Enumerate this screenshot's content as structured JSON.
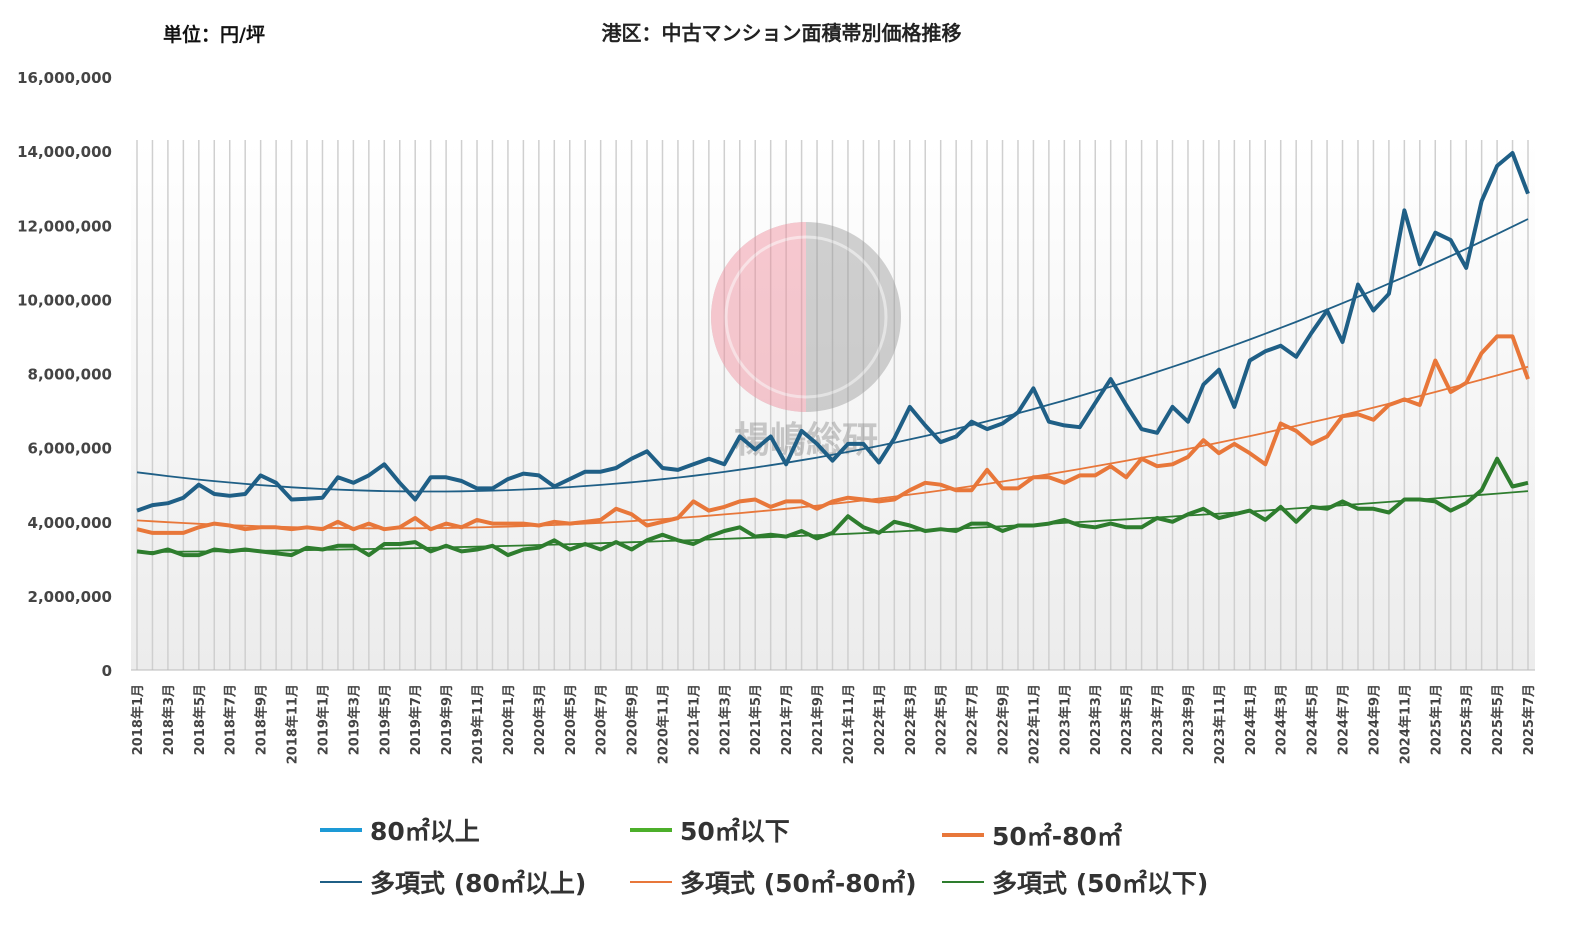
{
  "chart_data": {
    "type": "line",
    "title": "港区：中古マンション面積帯別価格推移",
    "unit_label": "単位：円/坪",
    "ylim": [
      0,
      16000000
    ],
    "y_ticks": [
      0,
      2000000,
      4000000,
      6000000,
      8000000,
      10000000,
      12000000,
      14000000,
      16000000
    ],
    "y_tick_labels": [
      "0",
      "2,000,000",
      "4,000,000",
      "6,000,000",
      "8,000,000",
      "10,000,000",
      "12,000,000",
      "14,000,000",
      "16,000,000"
    ],
    "x_start": "2018-01",
    "x_end": "2025-07",
    "x_tick_labels": [
      "2018年1月",
      "2018年3月",
      "2018年5月",
      "2018年7月",
      "2018年9月",
      "2018年11月",
      "2019年1月",
      "2019年3月",
      "2019年5月",
      "2019年7月",
      "2019年9月",
      "2019年11月",
      "2020年1月",
      "2020年3月",
      "2020年5月",
      "2020年7月",
      "2020年9月",
      "2020年11月",
      "2021年1月",
      "2021年3月",
      "2021年5月",
      "2021年7月",
      "2021年9月",
      "2021年11月",
      "2022年1月",
      "2022年3月",
      "2022年5月",
      "2022年7月",
      "2022年9月",
      "2022年11月",
      "2023年1月",
      "2023年3月",
      "2023年5月",
      "2023年7月",
      "2023年9月",
      "2023年11月",
      "2024年1月",
      "2024年3月",
      "2024年5月",
      "2024年7月",
      "2024年9月",
      "2024年11月",
      "2025年1月",
      "2025年3月",
      "2025年5月",
      "2025年7月"
    ],
    "grid": true,
    "legend_position": "bottom",
    "series": [
      {
        "name": "80㎡以上",
        "color": "#1f5f86",
        "trend_name": "多項式 (80㎡以上)",
        "trend_color": "#1f5f86",
        "values": [
          4300000,
          4450000,
          4500000,
          4650000,
          5000000,
          4750000,
          4700000,
          4750000,
          5250000,
          5050000,
          4600000,
          4620000,
          4650000,
          5200000,
          5050000,
          5250000,
          5550000,
          5050000,
          4600000,
          5200000,
          5200000,
          5100000,
          4900000,
          4900000,
          5150000,
          5300000,
          5250000,
          4950000,
          5150000,
          5350000,
          5350000,
          5450000,
          5700000,
          5900000,
          5450000,
          5400000,
          5550000,
          5700000,
          5550000,
          6300000,
          5950000,
          6300000,
          5550000,
          6450000,
          6100000,
          5650000,
          6100000,
          6100000,
          5600000,
          6250000,
          7100000,
          6600000,
          6150000,
          6300000,
          6700000,
          6500000,
          6650000,
          6950000,
          7600000,
          6700000,
          6600000,
          6550000,
          7200000,
          7850000,
          7150000,
          6500000,
          6400000,
          7100000,
          6700000,
          7700000,
          8100000,
          7100000,
          8350000,
          8600000,
          8750000,
          8450000,
          9100000,
          9700000,
          8850000,
          10400000,
          9700000,
          10150000,
          12400000,
          10950000,
          11800000,
          11600000,
          10850000,
          12650000,
          13600000,
          13950000,
          12850000
        ]
      },
      {
        "name": "50㎡以下",
        "color": "#2e7d2e",
        "trend_name": "多項式 (50㎡以下)",
        "trend_color": "#2e7d2e",
        "values": [
          3200000,
          3150000,
          3250000,
          3100000,
          3100000,
          3250000,
          3200000,
          3250000,
          3200000,
          3150000,
          3100000,
          3300000,
          3250000,
          3350000,
          3350000,
          3100000,
          3400000,
          3400000,
          3450000,
          3200000,
          3350000,
          3200000,
          3250000,
          3350000,
          3100000,
          3250000,
          3300000,
          3500000,
          3250000,
          3400000,
          3250000,
          3450000,
          3250000,
          3500000,
          3650000,
          3500000,
          3400000,
          3600000,
          3750000,
          3850000,
          3600000,
          3650000,
          3600000,
          3750000,
          3550000,
          3700000,
          4150000,
          3850000,
          3700000,
          4000000,
          3900000,
          3750000,
          3800000,
          3750000,
          3950000,
          3950000,
          3750000,
          3900000,
          3900000,
          3950000,
          4050000,
          3900000,
          3850000,
          3950000,
          3850000,
          3850000,
          4100000,
          4000000,
          4200000,
          4350000,
          4100000,
          4200000,
          4300000,
          4050000,
          4400000,
          4000000,
          4400000,
          4350000,
          4550000,
          4350000,
          4350000,
          4250000,
          4600000,
          4600000,
          4550000,
          4300000,
          4500000,
          4850000,
          5700000,
          4950000,
          5050000
        ]
      },
      {
        "name": "50㎡-80㎡",
        "color": "#e8773a",
        "trend_name": "多項式 (50㎡-80㎡)",
        "trend_color": "#e8773a",
        "values": [
          3800000,
          3700000,
          3700000,
          3700000,
          3850000,
          3950000,
          3900000,
          3800000,
          3850000,
          3850000,
          3800000,
          3850000,
          3800000,
          4000000,
          3800000,
          3950000,
          3800000,
          3850000,
          4100000,
          3800000,
          3950000,
          3850000,
          4050000,
          3950000,
          3950000,
          3950000,
          3900000,
          4000000,
          3950000,
          4000000,
          4050000,
          4350000,
          4200000,
          3900000,
          4000000,
          4100000,
          4550000,
          4300000,
          4400000,
          4550000,
          4600000,
          4400000,
          4550000,
          4550000,
          4350000,
          4550000,
          4650000,
          4600000,
          4550000,
          4600000,
          4850000,
          5050000,
          5000000,
          4850000,
          4850000,
          5400000,
          4900000,
          4900000,
          5200000,
          5200000,
          5050000,
          5250000,
          5250000,
          5500000,
          5200000,
          5700000,
          5500000,
          5550000,
          5750000,
          6200000,
          5850000,
          6100000,
          5850000,
          5550000,
          6650000,
          6450000,
          6100000,
          6300000,
          6850000,
          6900000,
          6750000,
          7150000,
          7300000,
          7150000,
          8350000,
          7500000,
          7750000,
          8550000,
          9000000,
          9000000,
          7850000
        ]
      }
    ],
    "watermark": "楊嶋総研"
  }
}
